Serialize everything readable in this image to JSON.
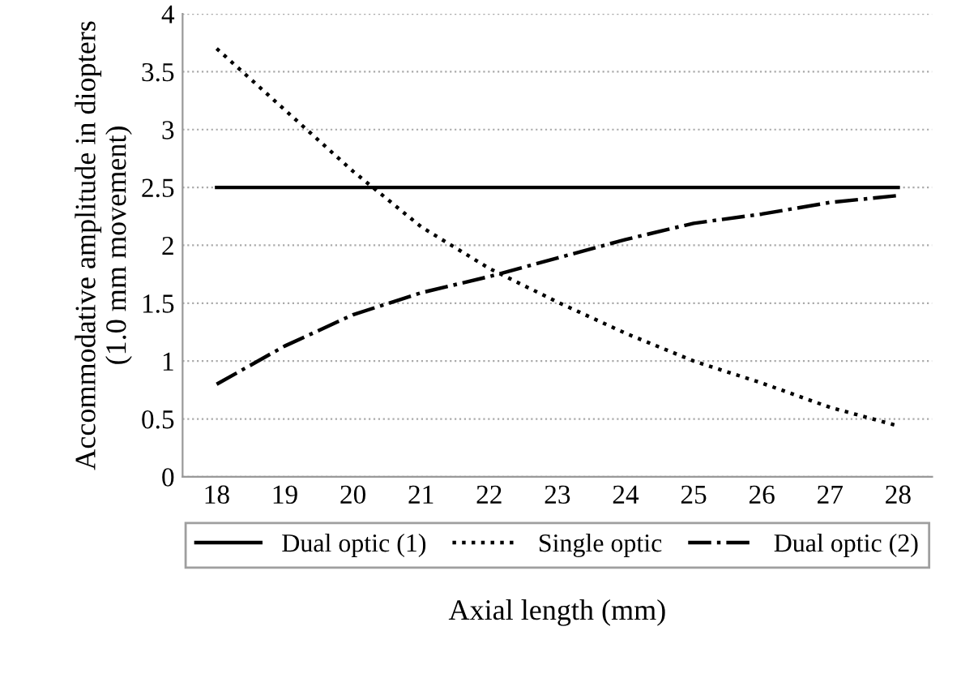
{
  "chart_data": {
    "type": "line",
    "xlabel": "Axial length (mm)",
    "ylabel": "Accommodative amplitude in diopters\n(1.0 mm movement)",
    "categories": [
      "18",
      "19",
      "20",
      "21",
      "22",
      "23",
      "24",
      "25",
      "26",
      "27",
      "28"
    ],
    "series": [
      {
        "name": "Dual optic (1)",
        "color": "#000000",
        "line_style": "solid",
        "values": [
          2.5,
          2.5,
          2.5,
          2.5,
          2.5,
          2.5,
          2.5,
          2.5,
          2.5,
          2.5,
          2.5
        ]
      },
      {
        "name": "Single optic",
        "color": "#000000",
        "line_style": "dotted",
        "values": [
          3.7,
          3.17,
          2.64,
          2.16,
          1.8,
          1.51,
          1.24,
          1.0,
          0.81,
          0.6,
          0.44
        ]
      },
      {
        "name": "Dual optic (2)",
        "color": "#000000",
        "line_style": "dashdot",
        "values": [
          0.8,
          1.13,
          1.4,
          1.59,
          1.73,
          1.89,
          2.05,
          2.19,
          2.27,
          2.37,
          2.43
        ]
      }
    ],
    "ylim": [
      0,
      4
    ],
    "yticks": [
      0,
      0.5,
      1,
      1.5,
      2,
      2.5,
      3,
      3.5,
      4
    ],
    "grid": "y",
    "legend": "bottom",
    "marker": "none"
  }
}
